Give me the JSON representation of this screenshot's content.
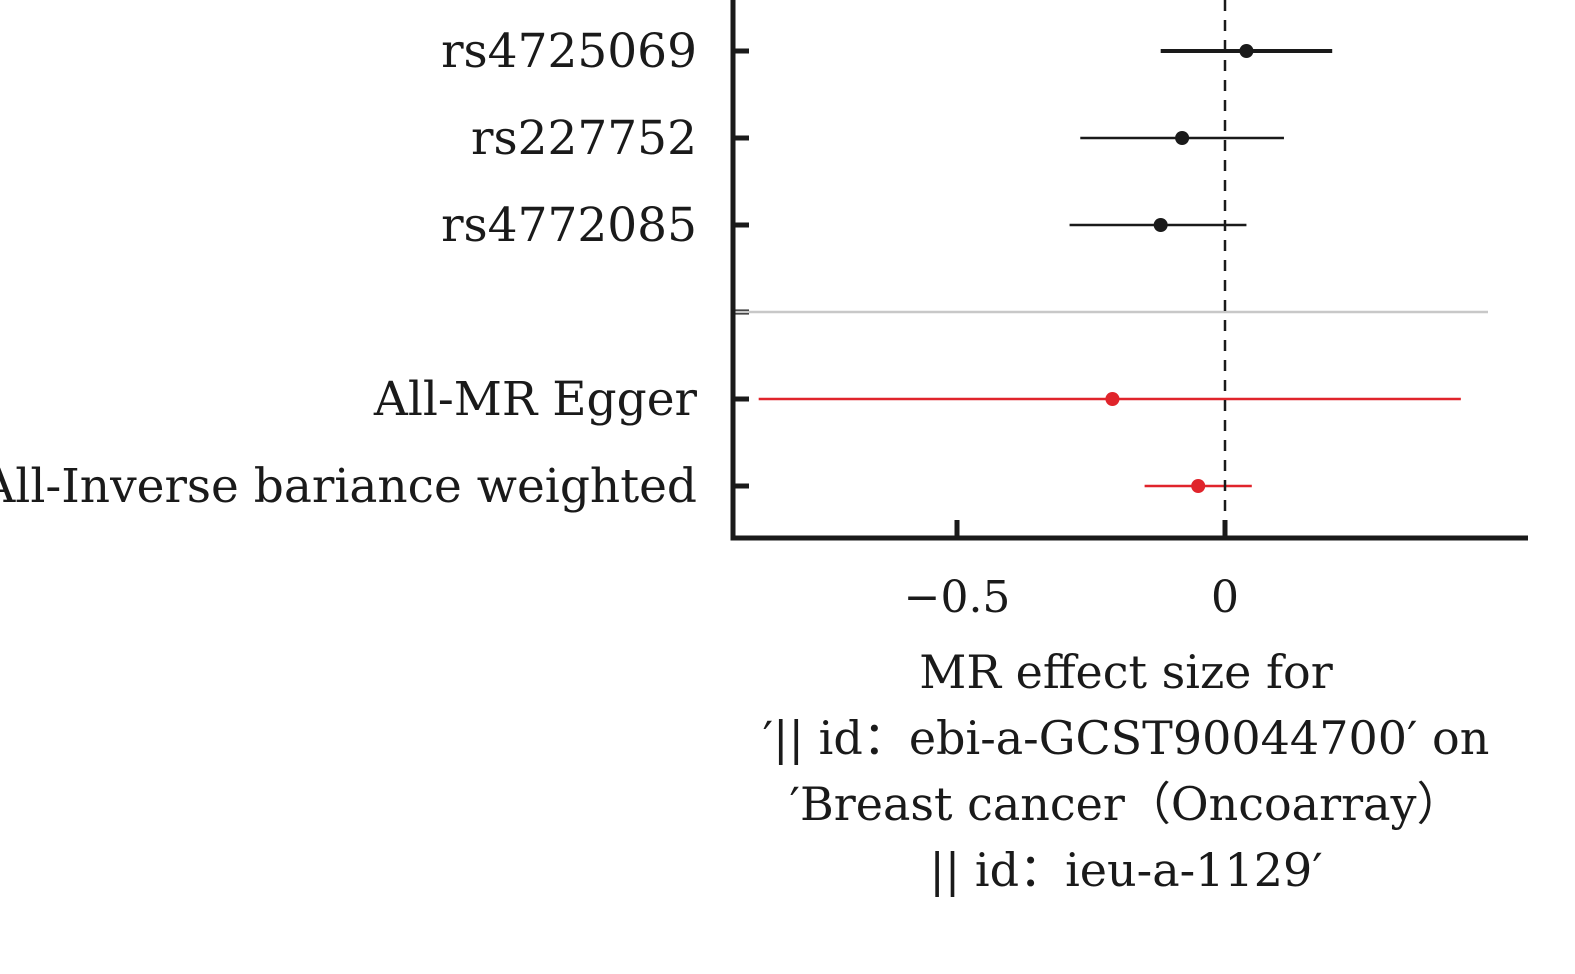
{
  "chart_data": {
    "type": "forest",
    "rows": [
      {
        "label": "rs4725069",
        "estimate": 0.04,
        "lower": -0.12,
        "upper": 0.2,
        "group": "snp"
      },
      {
        "label": "rs227752",
        "estimate": -0.08,
        "lower": -0.27,
        "upper": 0.11,
        "group": "snp"
      },
      {
        "label": "rs4772085",
        "estimate": -0.12,
        "lower": -0.29,
        "upper": 0.04,
        "group": "snp"
      },
      {
        "label": "",
        "separator": true
      },
      {
        "label": "All-MR Egger",
        "estimate": -0.21,
        "lower": -0.87,
        "upper": 0.44,
        "group": "summary"
      },
      {
        "label": "All-Inverse bariance weighted",
        "estimate": -0.05,
        "lower": -0.15,
        "upper": 0.05,
        "group": "summary"
      }
    ],
    "xticks": [
      -0.5,
      0
    ],
    "xtick_labels": [
      "−0.5",
      "0"
    ],
    "reference_line": 0,
    "xlim": [
      -0.92,
      0.56
    ],
    "xlabel_lines": [
      "MR effect size for",
      "′|| id：ebi-a-GCST90044700′ on",
      "′Breast cancer（Oncoarray）",
      "|| id：ieu-a-1129′"
    ],
    "colors": {
      "snp": "#1a1a1a",
      "summary": "#e0242b",
      "separator": "#c8c8c8",
      "axis": "#1a1a1a"
    }
  }
}
